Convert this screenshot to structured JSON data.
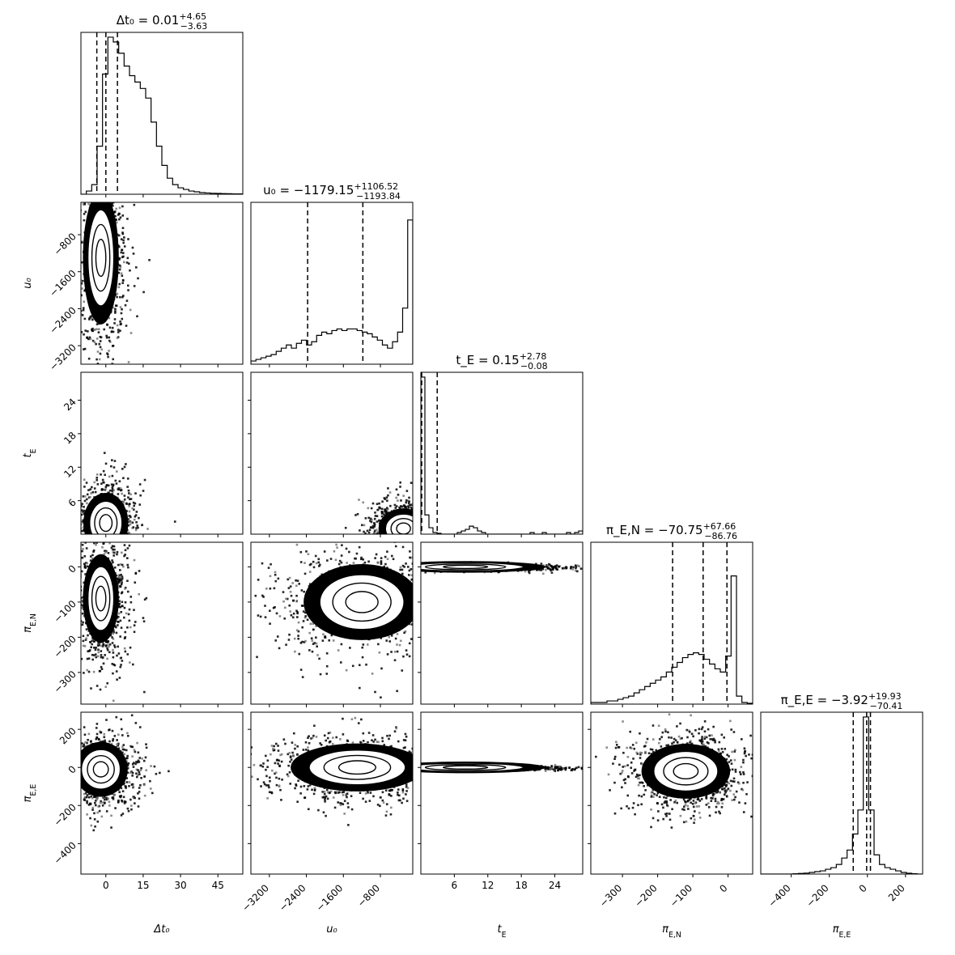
{
  "chart_data": {
    "type": "corner",
    "parameters": [
      {
        "key": "dt0",
        "label": "Δt₀",
        "axis_label": "Δt₀",
        "title": "Δt₀ = 0.01",
        "median": 0.01,
        "err_plus": 4.65,
        "err_minus": -3.63,
        "title_sup": "+4.65",
        "title_sub": "−3.63",
        "range": [
          -10,
          55
        ],
        "ticks": [
          0,
          15,
          30,
          45
        ],
        "tick_labels": [
          "0",
          "15",
          "30",
          "45"
        ],
        "quantiles": [
          -3.62,
          0.01,
          4.66
        ],
        "hist": [
          0,
          0.02,
          0.06,
          0.3,
          0.75,
          0.98,
          0.95,
          0.88,
          0.8,
          0.74,
          0.7,
          0.66,
          0.6,
          0.45,
          0.3,
          0.18,
          0.1,
          0.06,
          0.04,
          0.03,
          0.02,
          0.015,
          0.01,
          0.008,
          0.006,
          0.005,
          0.004,
          0.003,
          0.002,
          0.002
        ]
      },
      {
        "key": "u0",
        "label": "u₀",
        "axis_label": "u₀",
        "title": "u₀ = −1179.15",
        "median": -1179.15,
        "err_plus": 1106.52,
        "err_minus": -1193.84,
        "title_sup": "+1106.52",
        "title_sub": "−1193.84",
        "range": [
          -3600,
          -100
        ],
        "ticks": [
          -3200,
          -2400,
          -1600,
          -800
        ],
        "tick_labels": [
          "−3200",
          "−2400",
          "−1600",
          "−800"
        ],
        "quantiles": [
          -2373,
          -1179,
          -73
        ],
        "hist": [
          0.02,
          0.03,
          0.04,
          0.05,
          0.06,
          0.08,
          0.1,
          0.12,
          0.1,
          0.13,
          0.15,
          0.12,
          0.14,
          0.18,
          0.2,
          0.19,
          0.21,
          0.22,
          0.21,
          0.22,
          0.22,
          0.21,
          0.2,
          0.19,
          0.17,
          0.15,
          0.12,
          0.1,
          0.14,
          0.2,
          0.35,
          0.9
        ]
      },
      {
        "key": "tE",
        "label": "t_E",
        "axis_label": "t_E",
        "title": "t_E = 0.15",
        "median": 0.15,
        "err_plus": 2.78,
        "err_minus": -0.08,
        "title_sup": "+2.78",
        "title_sub": "−0.08",
        "range": [
          0,
          29
        ],
        "ticks": [
          6,
          12,
          18,
          24
        ],
        "tick_labels": [
          "6",
          "12",
          "18",
          "24"
        ],
        "quantiles": [
          0.07,
          0.15,
          2.93
        ],
        "hist": [
          0.98,
          0.12,
          0.04,
          0.01,
          0.005,
          0,
          0,
          0,
          0,
          0.01,
          0.02,
          0.03,
          0.05,
          0.04,
          0.02,
          0.01,
          0,
          0,
          0,
          0,
          0,
          0,
          0,
          0,
          0,
          0,
          0,
          0.01,
          0,
          0,
          0.01,
          0,
          0,
          0,
          0,
          0,
          0.01,
          0,
          0.01,
          0.02
        ]
      },
      {
        "key": "piEN",
        "label": "π_E,N",
        "axis_label": "π_E,N",
        "title": "π_E,N = −70.75",
        "median": -70.75,
        "err_plus": 67.66,
        "err_minus": -86.76,
        "title_sup": "+67.66",
        "title_sub": "−86.76",
        "range": [
          -390,
          70
        ],
        "ticks": [
          -300,
          -200,
          -100,
          0
        ],
        "tick_labels": [
          "−300",
          "−200",
          "−100",
          "0"
        ],
        "quantiles": [
          -157.5,
          -70.75,
          -3.1
        ],
        "hist": [
          0.01,
          0.01,
          0.01,
          0.02,
          0.02,
          0.03,
          0.04,
          0.05,
          0.07,
          0.09,
          0.11,
          0.13,
          0.15,
          0.17,
          0.2,
          0.23,
          0.26,
          0.29,
          0.31,
          0.32,
          0.31,
          0.28,
          0.25,
          0.22,
          0.2,
          0.3,
          0.8,
          0.05,
          0.01,
          0.005
        ]
      },
      {
        "key": "piEE",
        "label": "π_E,E",
        "axis_label": "π_E,E",
        "title": "π_E,E = −3.92",
        "median": -3.92,
        "err_plus": 19.93,
        "err_minus": -70.41,
        "title_sup": "+19.93",
        "title_sub": "−70.41",
        "range": [
          -560,
          290
        ],
        "ticks": [
          -400,
          -200,
          0,
          200
        ],
        "tick_labels": [
          "−400",
          "−200",
          "0",
          "200"
        ],
        "quantiles": [
          -74.3,
          -3.92,
          16.0
        ],
        "hist": [
          0,
          0,
          0,
          0,
          0,
          0,
          0.002,
          0.004,
          0.006,
          0.01,
          0.015,
          0.02,
          0.03,
          0.04,
          0.06,
          0.1,
          0.15,
          0.25,
          0.4,
          0.98,
          0.4,
          0.12,
          0.06,
          0.04,
          0.03,
          0.02,
          0.01,
          0.005,
          0.002,
          0
        ]
      }
    ],
    "pairs": [
      {
        "x": "dt0",
        "y": "u0",
        "cx": -2,
        "cy": -1300,
        "sx": 4,
        "sy": 800
      },
      {
        "x": "dt0",
        "y": "tE",
        "cx": 0,
        "cy": 2,
        "sx": 5,
        "sy": 3
      },
      {
        "x": "u0",
        "y": "tE",
        "cx": -300,
        "cy": 1,
        "sx": 300,
        "sy": 2
      },
      {
        "x": "dt0",
        "y": "piEN",
        "cx": -2,
        "cy": -90,
        "sx": 4,
        "sy": 70
      },
      {
        "x": "u0",
        "y": "piEN",
        "cx": -1200,
        "cy": -100,
        "sx": 700,
        "sy": 60
      },
      {
        "x": "tE",
        "y": "piEN",
        "cx": 8,
        "cy": 0,
        "sx": 8,
        "sy": 4
      },
      {
        "x": "dt0",
        "y": "piEE",
        "cx": -2,
        "cy": -10,
        "sx": 6,
        "sy": 80
      },
      {
        "x": "u0",
        "y": "piEE",
        "cx": -1300,
        "cy": 0,
        "sx": 800,
        "sy": 70
      },
      {
        "x": "tE",
        "y": "piEE",
        "cx": 8,
        "cy": 0,
        "sx": 8,
        "sy": 4
      },
      {
        "x": "piEN",
        "y": "piEE",
        "cx": -120,
        "cy": -20,
        "sx": 70,
        "sy": 80
      }
    ]
  }
}
